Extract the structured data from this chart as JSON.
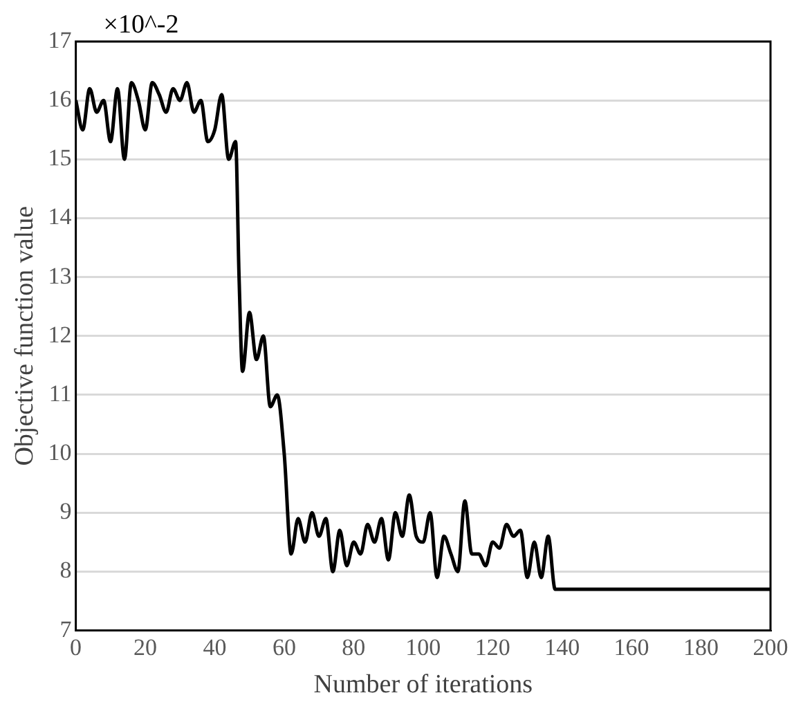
{
  "chart_data": {
    "type": "line",
    "xlabel": "Number of iterations",
    "ylabel": "Objective function value",
    "annotations": [
      "×10^-2"
    ],
    "x": [
      0,
      2,
      4,
      6,
      8,
      10,
      12,
      14,
      16,
      18,
      20,
      22,
      24,
      26,
      28,
      30,
      32,
      34,
      36,
      38,
      40,
      42,
      44,
      46,
      47,
      48,
      50,
      52,
      54,
      56,
      58,
      60,
      62,
      64,
      66,
      68,
      70,
      72,
      74,
      76,
      78,
      80,
      82,
      84,
      86,
      88,
      90,
      92,
      94,
      96,
      98,
      100,
      102,
      104,
      106,
      108,
      110,
      112,
      114,
      116,
      118,
      120,
      122,
      124,
      126,
      128,
      130,
      132,
      134,
      136,
      138,
      140,
      200
    ],
    "series": [
      {
        "color": "#000000",
        "values": [
          16.0,
          15.5,
          16.2,
          15.8,
          16.0,
          15.3,
          16.2,
          15.0,
          16.3,
          16.0,
          15.5,
          16.3,
          16.1,
          15.8,
          16.2,
          16.0,
          16.3,
          15.8,
          16.0,
          15.3,
          15.5,
          16.1,
          15.0,
          15.3,
          13.0,
          11.4,
          12.4,
          11.6,
          12.0,
          10.8,
          11.0,
          10.0,
          8.3,
          8.9,
          8.5,
          9.0,
          8.6,
          8.9,
          8.0,
          8.7,
          8.1,
          8.5,
          8.3,
          8.8,
          8.5,
          8.9,
          8.2,
          9.0,
          8.6,
          9.3,
          8.6,
          8.5,
          9.0,
          7.9,
          8.6,
          8.3,
          8.0,
          9.2,
          8.3,
          8.3,
          8.1,
          8.5,
          8.4,
          8.8,
          8.6,
          8.7,
          7.9,
          8.5,
          7.9,
          8.6,
          7.7,
          7.7,
          7.7
        ]
      }
    ],
    "xlim": [
      0,
      200
    ],
    "xticks": [
      0,
      20,
      40,
      60,
      80,
      100,
      120,
      140,
      160,
      180,
      200
    ],
    "ylim": [
      7,
      17
    ],
    "yticks": [
      7,
      8,
      9,
      10,
      11,
      12,
      13,
      14,
      15,
      16,
      17
    ],
    "grid": "y",
    "legend": false,
    "marker": "none",
    "line_style": "solid"
  }
}
